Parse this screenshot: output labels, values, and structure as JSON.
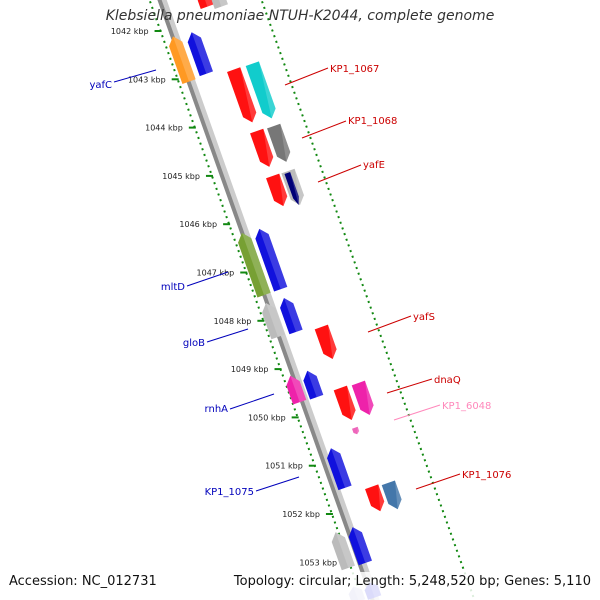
{
  "title": "Klebsiella pneumoniae NTUH-K2044, complete genome",
  "footer": {
    "accession": "Accession: NC_012731",
    "summary": "Topology: circular; Length: 5,248,520 bp; Genes: 5,110"
  },
  "colors": {
    "backbone": "#888888",
    "tick": "#118811",
    "label_plus": "#cc0000",
    "label_minus": "#0000bb",
    "label_rna": "#ff88bb"
  },
  "ticks": [
    {
      "label": "1042 kbp"
    },
    {
      "label": "1043 kbp"
    },
    {
      "label": "1044 kbp"
    },
    {
      "label": "1045 kbp"
    },
    {
      "label": "1046 kbp"
    },
    {
      "label": "1047 kbp"
    },
    {
      "label": "1048 kbp"
    },
    {
      "label": "1049 kbp"
    },
    {
      "label": "1050 kbp"
    },
    {
      "label": "1051 kbp"
    },
    {
      "label": "1052 kbp"
    },
    {
      "label": "1053 kbp"
    }
  ],
  "gene_labels": {
    "kp1_1067": "KP1_1067",
    "kp1_1068": "KP1_1068",
    "yafE": "yafE",
    "yafS": "yafS",
    "dnaQ": "dnaQ",
    "kp1_6048": "KP1_6048",
    "kp1_1076": "KP1_1076",
    "yafC": "yafC",
    "mltD": "mltD",
    "gloB": "gloB",
    "rnhA": "rnhA",
    "kp1_1075": "KP1_1075"
  }
}
